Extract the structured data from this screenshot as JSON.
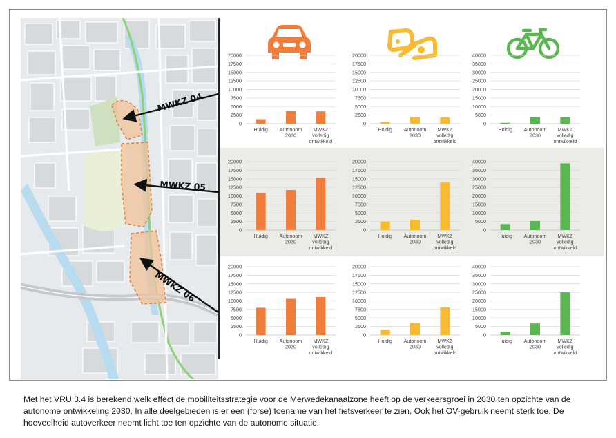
{
  "colors": {
    "car": "#f07d3a",
    "transit": "#f9b930",
    "bike": "#5ab650",
    "grid": "#d9d9d9",
    "axis": "#bfbfbf"
  },
  "icons": {
    "car": "car-icon",
    "transit": "bus-train-icon",
    "bike": "bicycle-icon"
  },
  "map": {
    "areas": [
      "MWKZ 04",
      "MWKZ 05",
      "MWKZ 06"
    ]
  },
  "caption": "Met het VRU 3.4 is berekend welk effect de mobiliteitsstrategie voor de Merwedekanaalzone heeft op de verkeersgroei in 2030 ten opzichte van de autonome ontwikkeling 2030. In alle deelgebieden is er een (forse) toename van het fietsverkeer te zien. Ook het OV-gebruik neemt sterk toe. De hoeveelheid autoverkeer neemt licht toe ten opzichte van de autonome situatie.",
  "chart_data": [
    {
      "id": "mwkz04-car",
      "type": "bar",
      "categories": [
        "Huidig",
        "Autonoom 2030",
        "MWKZ volledig ontwikkeld"
      ],
      "values": [
        1300,
        3700,
        3600
      ],
      "ylim": [
        0,
        20000
      ],
      "yticks": [
        "0",
        "2500",
        "5000",
        "7500",
        "10000",
        "12500",
        "15000",
        "17500",
        "20000"
      ],
      "color": "car"
    },
    {
      "id": "mwkz04-transit",
      "type": "bar",
      "categories": [
        "Huidig",
        "Autonoom 2030",
        "MWKZ volledig ontwikkeld"
      ],
      "values": [
        500,
        1900,
        1800
      ],
      "ylim": [
        0,
        20000
      ],
      "yticks": [
        "0",
        "2500",
        "5000",
        "7500",
        "10000",
        "12500",
        "15000",
        "17500",
        "20000"
      ],
      "color": "transit"
    },
    {
      "id": "mwkz04-bike",
      "type": "bar",
      "categories": [
        "Huidig",
        "Autonoom 2030",
        "MWKZ volledig ontwikkeld"
      ],
      "values": [
        500,
        3700,
        3800
      ],
      "ylim": [
        0,
        40000
      ],
      "yticks": [
        "0",
        "5000",
        "10000",
        "15000",
        "20000",
        "25000",
        "30000",
        "35000",
        "40000"
      ],
      "color": "bike"
    },
    {
      "id": "mwkz05-car",
      "type": "bar",
      "categories": [
        "Huidig",
        "Autonoom 2030",
        "MWKZ volledig ontwikkeld"
      ],
      "values": [
        10800,
        11700,
        15300
      ],
      "ylim": [
        0,
        20000
      ],
      "yticks": [
        "0",
        "2500",
        "5000",
        "7500",
        "10000",
        "12500",
        "15000",
        "17500",
        "20000"
      ],
      "color": "car"
    },
    {
      "id": "mwkz05-transit",
      "type": "bar",
      "categories": [
        "Huidig",
        "Autonoom 2030",
        "MWKZ volledig ontwikkeld"
      ],
      "values": [
        2500,
        3000,
        13900
      ],
      "ylim": [
        0,
        20000
      ],
      "yticks": [
        "0",
        "2500",
        "5000",
        "7500",
        "10000",
        "12500",
        "15000",
        "17500",
        "20000"
      ],
      "color": "transit"
    },
    {
      "id": "mwkz05-bike",
      "type": "bar",
      "categories": [
        "Huidig",
        "Autonoom 2030",
        "MWKZ volledig ontwikkeld"
      ],
      "values": [
        3500,
        5300,
        39000
      ],
      "ylim": [
        0,
        40000
      ],
      "yticks": [
        "0",
        "5000",
        "10000",
        "15000",
        "20000",
        "25000",
        "30000",
        "35000",
        "40000"
      ],
      "color": "bike"
    },
    {
      "id": "mwkz06-car",
      "type": "bar",
      "categories": [
        "Huidig",
        "Autonoom 2030",
        "MWKZ volledig ontwikkeld"
      ],
      "values": [
        8000,
        10600,
        11100
      ],
      "ylim": [
        0,
        20000
      ],
      "yticks": [
        "0",
        "2500",
        "5000",
        "7500",
        "10000",
        "12500",
        "15000",
        "17500",
        "20000"
      ],
      "color": "car"
    },
    {
      "id": "mwkz06-transit",
      "type": "bar",
      "categories": [
        "Huidig",
        "Autonoom 2030",
        "MWKZ volledig ontwikkeld"
      ],
      "values": [
        1600,
        3500,
        8100
      ],
      "ylim": [
        0,
        20000
      ],
      "yticks": [
        "0",
        "2500",
        "5000",
        "7500",
        "10000",
        "12500",
        "15000",
        "17500",
        "20000"
      ],
      "color": "transit"
    },
    {
      "id": "mwkz06-bike",
      "type": "bar",
      "categories": [
        "Huidig",
        "Autonoom 2030",
        "MWKZ volledig ontwikkeld"
      ],
      "values": [
        2000,
        6800,
        25000
      ],
      "ylim": [
        0,
        40000
      ],
      "yticks": [
        "0",
        "5000",
        "10000",
        "15000",
        "20000",
        "25000",
        "30000",
        "35000",
        "40000"
      ],
      "color": "bike"
    }
  ]
}
